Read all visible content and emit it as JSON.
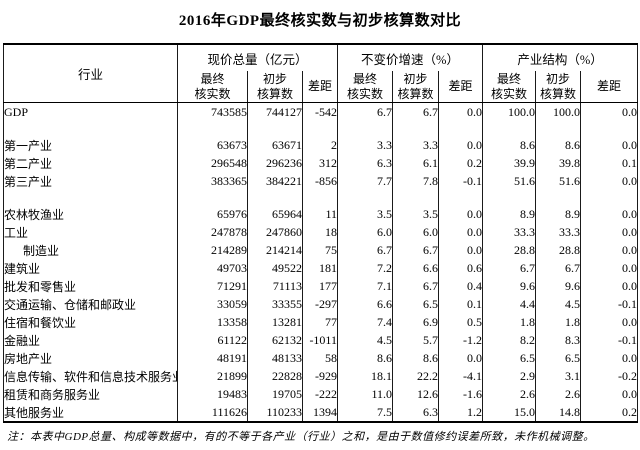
{
  "title": "2016年GDP最终核实数与初步核算数对比",
  "table": {
    "row_header": "行业",
    "groups": [
      {
        "label": "现价总量（亿元）"
      },
      {
        "label": "不变价增速（%）"
      },
      {
        "label": "产业结构（%）"
      }
    ],
    "sub_headers": [
      {
        "line1": "最终",
        "line2": "核实数"
      },
      {
        "line1": "初步",
        "line2": "核算数"
      },
      {
        "line1": "差距",
        "line2": ""
      }
    ],
    "rows": [
      {
        "label": "GDP",
        "values": [
          "743585",
          "744127",
          "-542",
          "6.7",
          "6.7",
          "0.0",
          "100.0",
          "100.0",
          "0.0"
        ]
      },
      {
        "spacer": true
      },
      {
        "label": "第一产业",
        "values": [
          "63673",
          "63671",
          "2",
          "3.3",
          "3.3",
          "0.0",
          "8.6",
          "8.6",
          "0.0"
        ]
      },
      {
        "label": "第二产业",
        "values": [
          "296548",
          "296236",
          "312",
          "6.3",
          "6.1",
          "0.2",
          "39.9",
          "39.8",
          "0.1"
        ]
      },
      {
        "label": "第三产业",
        "values": [
          "383365",
          "384221",
          "-856",
          "7.7",
          "7.8",
          "-0.1",
          "51.6",
          "51.6",
          "0.0"
        ]
      },
      {
        "spacer": true
      },
      {
        "label": "农林牧渔业",
        "values": [
          "65976",
          "65964",
          "11",
          "3.5",
          "3.5",
          "0.0",
          "8.9",
          "8.9",
          "0.0"
        ]
      },
      {
        "label": "工业",
        "values": [
          "247878",
          "247860",
          "18",
          "6.0",
          "6.0",
          "0.0",
          "33.3",
          "33.3",
          "0.0"
        ]
      },
      {
        "label": "制造业",
        "indent": true,
        "values": [
          "214289",
          "214214",
          "75",
          "6.7",
          "6.7",
          "0.0",
          "28.8",
          "28.8",
          "0.0"
        ]
      },
      {
        "label": "建筑业",
        "values": [
          "49703",
          "49522",
          "181",
          "7.2",
          "6.6",
          "0.6",
          "6.7",
          "6.7",
          "0.0"
        ]
      },
      {
        "label": "批发和零售业",
        "values": [
          "71291",
          "71113",
          "177",
          "7.1",
          "6.7",
          "0.4",
          "9.6",
          "9.6",
          "0.0"
        ]
      },
      {
        "label": "交通运输、仓储和邮政业",
        "values": [
          "33059",
          "33355",
          "-297",
          "6.6",
          "6.5",
          "0.1",
          "4.4",
          "4.5",
          "-0.1"
        ]
      },
      {
        "label": "住宿和餐饮业",
        "values": [
          "13358",
          "13281",
          "77",
          "7.4",
          "6.9",
          "0.5",
          "1.8",
          "1.8",
          "0.0"
        ]
      },
      {
        "label": "金融业",
        "values": [
          "61122",
          "62132",
          "-1011",
          "4.5",
          "5.7",
          "-1.2",
          "8.2",
          "8.3",
          "-0.1"
        ]
      },
      {
        "label": "房地产业",
        "values": [
          "48191",
          "48133",
          "58",
          "8.6",
          "8.6",
          "0.0",
          "6.5",
          "6.5",
          "0.0"
        ]
      },
      {
        "label": "信息传输、软件和信息技术服务业",
        "values": [
          "21899",
          "22828",
          "-929",
          "18.1",
          "22.2",
          "-4.1",
          "2.9",
          "3.1",
          "-0.2"
        ]
      },
      {
        "label": "租赁和商务服务业",
        "values": [
          "19483",
          "19705",
          "-222",
          "11.0",
          "12.6",
          "-1.6",
          "2.6",
          "2.6",
          "0.0"
        ]
      },
      {
        "label": "其他服务业",
        "values": [
          "111626",
          "110233",
          "1394",
          "7.5",
          "6.3",
          "1.2",
          "15.0",
          "14.8",
          "0.2"
        ]
      }
    ]
  },
  "note": "注：本表中GDP总量、构成等数据中，有的不等于各产业（行业）之和，是由于数值修约误差所致，未作机械调整。"
}
